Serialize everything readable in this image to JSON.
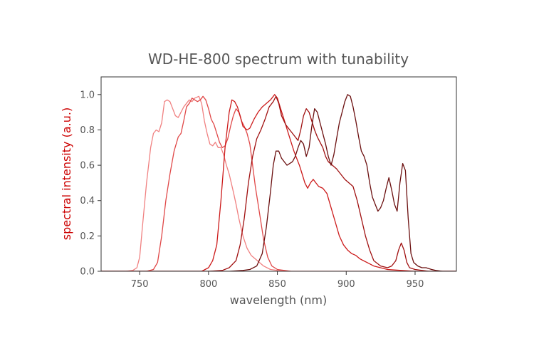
{
  "chart_data": {
    "type": "line",
    "title": "WD-HE-800 spectrum with tunability",
    "xlabel": "wavelength (nm)",
    "ylabel": "spectral intensity (a.u.)",
    "xlim": [
      722,
      980
    ],
    "ylim": [
      0,
      1.1
    ],
    "xticks": [
      750,
      800,
      850,
      900,
      950
    ],
    "xtick_labels": [
      "750",
      "800",
      "850",
      "900",
      "950"
    ],
    "yticks": [
      0.0,
      0.2,
      0.4,
      0.6,
      0.8,
      1.0
    ],
    "ytick_labels": [
      "0.0",
      "0.2",
      "0.4",
      "0.6",
      "0.8",
      "1.0"
    ],
    "grid": false,
    "ylabel_color": "#cc0000",
    "series": [
      {
        "color": "#f08080",
        "points": [
          [
            722,
            0
          ],
          [
            740,
            0
          ],
          [
            745,
            0.005
          ],
          [
            748,
            0.02
          ],
          [
            750,
            0.08
          ],
          [
            752,
            0.25
          ],
          [
            755,
            0.5
          ],
          [
            758,
            0.7
          ],
          [
            760,
            0.78
          ],
          [
            762,
            0.8
          ],
          [
            764,
            0.79
          ],
          [
            766,
            0.84
          ],
          [
            768,
            0.96
          ],
          [
            770,
            0.97
          ],
          [
            772,
            0.96
          ],
          [
            774,
            0.92
          ],
          [
            776,
            0.88
          ],
          [
            778,
            0.87
          ],
          [
            780,
            0.9
          ],
          [
            782,
            0.93
          ],
          [
            784,
            0.95
          ],
          [
            786,
            0.97
          ],
          [
            788,
            0.96
          ],
          [
            790,
            0.98
          ],
          [
            793,
            0.99
          ],
          [
            795,
            0.95
          ],
          [
            797,
            0.85
          ],
          [
            799,
            0.78
          ],
          [
            801,
            0.72
          ],
          [
            803,
            0.71
          ],
          [
            805,
            0.73
          ],
          [
            807,
            0.7
          ],
          [
            809,
            0.7
          ],
          [
            811,
            0.66
          ],
          [
            813,
            0.6
          ],
          [
            815,
            0.55
          ],
          [
            818,
            0.45
          ],
          [
            820,
            0.38
          ],
          [
            822,
            0.3
          ],
          [
            825,
            0.2
          ],
          [
            828,
            0.13
          ],
          [
            831,
            0.09
          ],
          [
            834,
            0.07
          ],
          [
            837,
            0.05
          ],
          [
            840,
            0.03
          ],
          [
            845,
            0.01
          ],
          [
            850,
            0.005
          ],
          [
            860,
            0
          ],
          [
            980,
            0
          ]
        ]
      },
      {
        "color": "#e04848",
        "points": [
          [
            722,
            0
          ],
          [
            755,
            0
          ],
          [
            760,
            0.01
          ],
          [
            763,
            0.05
          ],
          [
            766,
            0.2
          ],
          [
            769,
            0.4
          ],
          [
            772,
            0.55
          ],
          [
            775,
            0.68
          ],
          [
            778,
            0.76
          ],
          [
            780,
            0.78
          ],
          [
            782,
            0.85
          ],
          [
            784,
            0.93
          ],
          [
            786,
            0.95
          ],
          [
            788,
            0.98
          ],
          [
            790,
            0.97
          ],
          [
            792,
            0.96
          ],
          [
            794,
            0.97
          ],
          [
            796,
            0.99
          ],
          [
            798,
            0.97
          ],
          [
            800,
            0.92
          ],
          [
            802,
            0.86
          ],
          [
            804,
            0.83
          ],
          [
            806,
            0.78
          ],
          [
            808,
            0.73
          ],
          [
            810,
            0.7
          ],
          [
            812,
            0.71
          ],
          [
            814,
            0.75
          ],
          [
            816,
            0.82
          ],
          [
            818,
            0.88
          ],
          [
            820,
            0.92
          ],
          [
            822,
            0.9
          ],
          [
            824,
            0.85
          ],
          [
            826,
            0.82
          ],
          [
            828,
            0.78
          ],
          [
            830,
            0.72
          ],
          [
            832,
            0.6
          ],
          [
            834,
            0.48
          ],
          [
            836,
            0.38
          ],
          [
            838,
            0.28
          ],
          [
            840,
            0.18
          ],
          [
            843,
            0.08
          ],
          [
            846,
            0.03
          ],
          [
            850,
            0.01
          ],
          [
            860,
            0
          ],
          [
            980,
            0
          ]
        ]
      },
      {
        "color": "#cc1a1a",
        "points": [
          [
            722,
            0
          ],
          [
            795,
            0
          ],
          [
            800,
            0.02
          ],
          [
            803,
            0.06
          ],
          [
            806,
            0.15
          ],
          [
            809,
            0.4
          ],
          [
            812,
            0.7
          ],
          [
            815,
            0.9
          ],
          [
            817,
            0.97
          ],
          [
            819,
            0.96
          ],
          [
            821,
            0.93
          ],
          [
            823,
            0.88
          ],
          [
            825,
            0.82
          ],
          [
            828,
            0.8
          ],
          [
            830,
            0.81
          ],
          [
            833,
            0.86
          ],
          [
            836,
            0.9
          ],
          [
            839,
            0.93
          ],
          [
            842,
            0.95
          ],
          [
            845,
            0.97
          ],
          [
            848,
            1.0
          ],
          [
            850,
            0.98
          ],
          [
            852,
            0.93
          ],
          [
            854,
            0.88
          ],
          [
            856,
            0.83
          ],
          [
            858,
            0.78
          ],
          [
            860,
            0.73
          ],
          [
            862,
            0.68
          ],
          [
            864,
            0.64
          ],
          [
            866,
            0.6
          ],
          [
            868,
            0.55
          ],
          [
            870,
            0.5
          ],
          [
            872,
            0.47
          ],
          [
            874,
            0.5
          ],
          [
            876,
            0.52
          ],
          [
            878,
            0.5
          ],
          [
            880,
            0.48
          ],
          [
            883,
            0.47
          ],
          [
            886,
            0.44
          ],
          [
            889,
            0.36
          ],
          [
            892,
            0.28
          ],
          [
            895,
            0.2
          ],
          [
            898,
            0.15
          ],
          [
            901,
            0.12
          ],
          [
            904,
            0.1
          ],
          [
            907,
            0.09
          ],
          [
            910,
            0.07
          ],
          [
            915,
            0.05
          ],
          [
            920,
            0.03
          ],
          [
            930,
            0.01
          ],
          [
            940,
            0.005
          ],
          [
            950,
            0
          ],
          [
            980,
            0
          ]
        ]
      },
      {
        "color": "#a01010",
        "points": [
          [
            722,
            0
          ],
          [
            800,
            0
          ],
          [
            810,
            0.005
          ],
          [
            815,
            0.02
          ],
          [
            820,
            0.06
          ],
          [
            823,
            0.15
          ],
          [
            826,
            0.3
          ],
          [
            829,
            0.5
          ],
          [
            832,
            0.65
          ],
          [
            835,
            0.75
          ],
          [
            838,
            0.8
          ],
          [
            841,
            0.86
          ],
          [
            844,
            0.93
          ],
          [
            847,
            0.96
          ],
          [
            849,
            0.99
          ],
          [
            851,
            0.95
          ],
          [
            853,
            0.88
          ],
          [
            856,
            0.83
          ],
          [
            859,
            0.8
          ],
          [
            862,
            0.77
          ],
          [
            865,
            0.74
          ],
          [
            867,
            0.8
          ],
          [
            869,
            0.88
          ],
          [
            871,
            0.92
          ],
          [
            873,
            0.9
          ],
          [
            875,
            0.85
          ],
          [
            877,
            0.8
          ],
          [
            879,
            0.76
          ],
          [
            881,
            0.73
          ],
          [
            883,
            0.7
          ],
          [
            885,
            0.65
          ],
          [
            887,
            0.62
          ],
          [
            890,
            0.6
          ],
          [
            893,
            0.58
          ],
          [
            896,
            0.55
          ],
          [
            899,
            0.52
          ],
          [
            902,
            0.5
          ],
          [
            905,
            0.48
          ],
          [
            908,
            0.4
          ],
          [
            911,
            0.3
          ],
          [
            914,
            0.2
          ],
          [
            917,
            0.12
          ],
          [
            920,
            0.06
          ],
          [
            925,
            0.03
          ],
          [
            930,
            0.02
          ],
          [
            933,
            0.03
          ],
          [
            936,
            0.06
          ],
          [
            938,
            0.12
          ],
          [
            940,
            0.16
          ],
          [
            942,
            0.12
          ],
          [
            944,
            0.05
          ],
          [
            946,
            0.02
          ],
          [
            950,
            0.01
          ],
          [
            960,
            0
          ],
          [
            980,
            0
          ]
        ]
      },
      {
        "color": "#6b0f0f",
        "points": [
          [
            722,
            0
          ],
          [
            815,
            0
          ],
          [
            825,
            0.005
          ],
          [
            830,
            0.01
          ],
          [
            835,
            0.03
          ],
          [
            839,
            0.1
          ],
          [
            842,
            0.25
          ],
          [
            845,
            0.45
          ],
          [
            847,
            0.6
          ],
          [
            849,
            0.68
          ],
          [
            851,
            0.68
          ],
          [
            853,
            0.64
          ],
          [
            855,
            0.62
          ],
          [
            857,
            0.6
          ],
          [
            859,
            0.61
          ],
          [
            861,
            0.62
          ],
          [
            863,
            0.65
          ],
          [
            865,
            0.7
          ],
          [
            867,
            0.74
          ],
          [
            869,
            0.72
          ],
          [
            871,
            0.65
          ],
          [
            873,
            0.7
          ],
          [
            875,
            0.82
          ],
          [
            877,
            0.92
          ],
          [
            879,
            0.9
          ],
          [
            881,
            0.84
          ],
          [
            883,
            0.78
          ],
          [
            885,
            0.72
          ],
          [
            887,
            0.65
          ],
          [
            889,
            0.6
          ],
          [
            891,
            0.66
          ],
          [
            893,
            0.75
          ],
          [
            895,
            0.84
          ],
          [
            897,
            0.9
          ],
          [
            899,
            0.96
          ],
          [
            901,
            1.0
          ],
          [
            903,
            0.99
          ],
          [
            905,
            0.93
          ],
          [
            907,
            0.85
          ],
          [
            909,
            0.76
          ],
          [
            911,
            0.68
          ],
          [
            913,
            0.65
          ],
          [
            915,
            0.6
          ],
          [
            917,
            0.5
          ],
          [
            919,
            0.42
          ],
          [
            921,
            0.38
          ],
          [
            923,
            0.34
          ],
          [
            925,
            0.36
          ],
          [
            927,
            0.4
          ],
          [
            929,
            0.47
          ],
          [
            931,
            0.53
          ],
          [
            933,
            0.46
          ],
          [
            935,
            0.38
          ],
          [
            937,
            0.34
          ],
          [
            939,
            0.5
          ],
          [
            941,
            0.61
          ],
          [
            943,
            0.57
          ],
          [
            945,
            0.3
          ],
          [
            947,
            0.1
          ],
          [
            949,
            0.05
          ],
          [
            952,
            0.03
          ],
          [
            955,
            0.02
          ],
          [
            958,
            0.02
          ],
          [
            962,
            0.01
          ],
          [
            965,
            0.005
          ],
          [
            970,
            0
          ],
          [
            980,
            0
          ]
        ]
      }
    ]
  }
}
